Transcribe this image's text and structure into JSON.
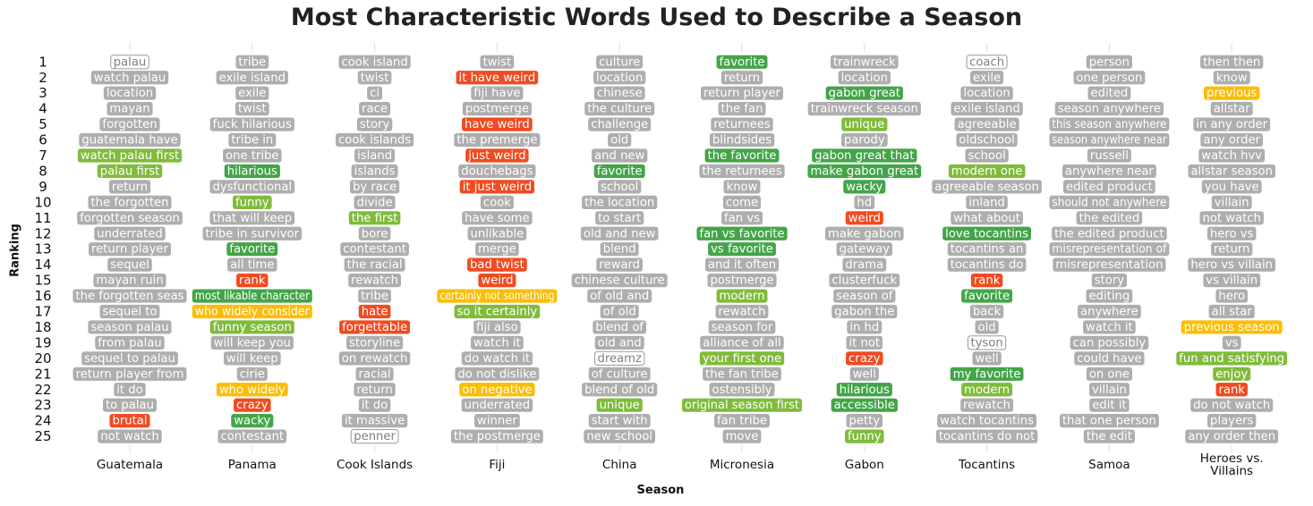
{
  "chart_data": {
    "type": "table",
    "title": "Most Characteristic Words Used to Describe a Season",
    "xlabel": "Season",
    "ylabel": "Ranking",
    "y_ticks": [
      1,
      2,
      3,
      4,
      5,
      6,
      7,
      8,
      9,
      10,
      11,
      12,
      13,
      14,
      15,
      16,
      17,
      18,
      19,
      20,
      21,
      22,
      23,
      24,
      25
    ],
    "grid": false,
    "legend": "none",
    "colors": {
      "gray": "#aeaeae",
      "red": "#f04b21",
      "green": "#43a548",
      "lightgreen": "#80bb3b",
      "yellow": "#fbbd06",
      "outline": "#ffffff",
      "outline_border": "#999999",
      "outline_text": "#808080",
      "tick": "#dddddd",
      "label_text": "#ffffff"
    },
    "series": [
      {
        "name": "Guatemala",
        "words": [
          "palau",
          "watch palau",
          "location",
          "mayan",
          "forgotten",
          "guatemala have",
          "watch palau first",
          "palau first",
          "return",
          "the forgotten",
          "forgotten season",
          "underrated",
          "return player",
          "sequel",
          "mayan ruin",
          "the forgotten seas",
          "sequel to",
          "season palau",
          "from palau",
          "sequel to palau",
          "return player from",
          "it do",
          "to palau",
          "brutal",
          "not watch"
        ],
        "colors": [
          "outline",
          "gray",
          "gray",
          "gray",
          "gray",
          "gray",
          "lightgreen",
          "lightgreen",
          "gray",
          "gray",
          "gray",
          "gray",
          "gray",
          "gray",
          "gray",
          "gray",
          "gray",
          "gray",
          "gray",
          "gray",
          "gray",
          "gray",
          "gray",
          "red",
          "gray"
        ]
      },
      {
        "name": "Panama",
        "words": [
          "tribe",
          "exile island",
          "exile",
          "twist",
          "fuck hilarious",
          "tribe in",
          "one tribe",
          "hilarious",
          "dysfunctional",
          "funny",
          "that will keep",
          "tribe in survivor",
          "favorite",
          "all time",
          "rank",
          "most likable character",
          "who widely consider",
          "funny season",
          "will keep you",
          "will keep",
          "cirie",
          "who widely",
          "crazy",
          "wacky",
          "contestant"
        ],
        "colors": [
          "gray",
          "gray",
          "gray",
          "gray",
          "gray",
          "gray",
          "gray",
          "green",
          "gray",
          "lightgreen",
          "gray",
          "gray",
          "green",
          "gray",
          "red",
          "green",
          "yellow",
          "lightgreen",
          "gray",
          "gray",
          "gray",
          "yellow",
          "red",
          "green",
          "gray"
        ]
      },
      {
        "name": "Cook Islands",
        "words": [
          "cook island",
          "twist",
          "ci",
          "race",
          "story",
          "cook islands",
          "island",
          "islands",
          "by race",
          "divide",
          "the first",
          "bore",
          "contestant",
          "the racial",
          "rewatch",
          "tribe",
          "hate",
          "forgettable",
          "storyline",
          "on rewatch",
          "racial",
          "return",
          "it do",
          "it massive",
          "penner"
        ],
        "colors": [
          "gray",
          "gray",
          "gray",
          "gray",
          "gray",
          "gray",
          "gray",
          "gray",
          "gray",
          "gray",
          "lightgreen",
          "gray",
          "gray",
          "gray",
          "gray",
          "gray",
          "red",
          "red",
          "gray",
          "gray",
          "gray",
          "gray",
          "gray",
          "gray",
          "outline"
        ]
      },
      {
        "name": "Fiji",
        "words": [
          "twist",
          "it have weird",
          "fiji have",
          "postmerge",
          "have weird",
          "the premerge",
          "just weird",
          "douchebags",
          "it just weird",
          "cook",
          "have some",
          "unlikable",
          "merge",
          "bad twist",
          "weird",
          "certainly not something",
          "so it certainly",
          "fiji also",
          "watch it",
          "do watch it",
          "do not dislike",
          "on negative",
          "underrated",
          "winner",
          "the postmerge"
        ],
        "colors": [
          "gray",
          "red",
          "gray",
          "gray",
          "red",
          "gray",
          "red",
          "gray",
          "red",
          "gray",
          "gray",
          "gray",
          "gray",
          "red",
          "red",
          "yellow",
          "lightgreen",
          "gray",
          "gray",
          "gray",
          "gray",
          "yellow",
          "gray",
          "gray",
          "gray"
        ]
      },
      {
        "name": "China",
        "words": [
          "culture",
          "location",
          "chinese",
          "the culture",
          "challenge",
          "old",
          "and new",
          "favorite",
          "school",
          "the location",
          "to start",
          "old and new",
          "blend",
          "reward",
          "chinese culture",
          "of old and",
          "of old",
          "blend of",
          "old and",
          "dreamz",
          "of culture",
          "blend of old",
          "unique",
          "start with",
          "new school"
        ],
        "colors": [
          "gray",
          "gray",
          "gray",
          "gray",
          "gray",
          "gray",
          "gray",
          "green",
          "gray",
          "gray",
          "gray",
          "gray",
          "gray",
          "gray",
          "gray",
          "gray",
          "gray",
          "gray",
          "gray",
          "outline",
          "gray",
          "gray",
          "lightgreen",
          "gray",
          "gray"
        ]
      },
      {
        "name": "Micronesia",
        "words": [
          "favorite",
          "return",
          "return player",
          "the fan",
          "returnees",
          "blindsides",
          "the favorite",
          "the returnees",
          "know",
          "come",
          "fan vs",
          "fan vs favorite",
          "vs favorite",
          "and it often",
          "postmerge",
          "modern",
          "rewatch",
          "season for",
          "alliance of all",
          "your first one",
          "the fan tribe",
          "ostensibly",
          "original season first",
          "fan tribe",
          "move"
        ],
        "colors": [
          "green",
          "gray",
          "gray",
          "gray",
          "gray",
          "gray",
          "green",
          "gray",
          "gray",
          "gray",
          "gray",
          "green",
          "green",
          "gray",
          "gray",
          "lightgreen",
          "gray",
          "gray",
          "gray",
          "lightgreen",
          "gray",
          "gray",
          "lightgreen",
          "gray",
          "gray"
        ]
      },
      {
        "name": "Gabon",
        "words": [
          "trainwreck",
          "location",
          "gabon great",
          "trainwreck season",
          "unique",
          "parody",
          "gabon great that",
          "make gabon great",
          "wacky",
          "hd",
          "weird",
          "make gabon",
          "gateway",
          "drama",
          "clusterfuck",
          "season of",
          "gabon the",
          "in hd",
          "it not",
          "crazy",
          "well",
          "hilarious",
          "accessible",
          "petty",
          "funny"
        ],
        "colors": [
          "gray",
          "gray",
          "green",
          "gray",
          "lightgreen",
          "gray",
          "green",
          "green",
          "green",
          "gray",
          "red",
          "gray",
          "gray",
          "gray",
          "gray",
          "gray",
          "gray",
          "gray",
          "gray",
          "red",
          "gray",
          "green",
          "green",
          "gray",
          "lightgreen"
        ]
      },
      {
        "name": "Tocantins",
        "words": [
          "coach",
          "exile",
          "location",
          "exile island",
          "agreeable",
          "oldschool",
          "school",
          "modern one",
          "agreeable season",
          "inland",
          "what about",
          "love tocantins",
          "tocantins an",
          "tocantins do",
          "rank",
          "favorite",
          "back",
          "old",
          "tyson",
          "well",
          "my favorite",
          "modern",
          "rewatch",
          "watch tocantins",
          "tocantins do not"
        ],
        "colors": [
          "outline",
          "gray",
          "gray",
          "gray",
          "gray",
          "gray",
          "gray",
          "lightgreen",
          "gray",
          "gray",
          "gray",
          "green",
          "gray",
          "gray",
          "red",
          "green",
          "gray",
          "gray",
          "outline",
          "gray",
          "green",
          "lightgreen",
          "gray",
          "gray",
          "gray"
        ]
      },
      {
        "name": "Samoa",
        "words": [
          "person",
          "one person",
          "edited",
          "season anywhere",
          "this season anywhere",
          "season anywhere near",
          "russell",
          "anywhere near",
          "edited product",
          "should not anywhere",
          "the edited",
          "the edited product",
          "misrepresentation of",
          "misrepresentation",
          "story",
          "editing",
          "anywhere",
          "watch it",
          "can possibly",
          "could have",
          "on one",
          "villain",
          "edit it",
          "that one person",
          "the edit"
        ],
        "colors": [
          "gray",
          "gray",
          "gray",
          "gray",
          "gray",
          "gray",
          "gray",
          "gray",
          "gray",
          "gray",
          "gray",
          "gray",
          "gray",
          "gray",
          "gray",
          "gray",
          "gray",
          "gray",
          "gray",
          "gray",
          "gray",
          "gray",
          "gray",
          "gray",
          "gray"
        ]
      },
      {
        "name": "Heroes vs. Villains",
        "words": [
          "then then",
          "know",
          "previous",
          "allstar",
          "in any order",
          "any order",
          "watch hvv",
          "allstar season",
          "you have",
          "villain",
          "not watch",
          "hero vs",
          "return",
          "hero vs villain",
          "vs villain",
          "hero",
          "all star",
          "previous season",
          "vs",
          "fun and satisfying",
          "enjoy",
          "rank",
          "do not watch",
          "players",
          "any order then"
        ],
        "colors": [
          "gray",
          "gray",
          "yellow",
          "gray",
          "gray",
          "gray",
          "gray",
          "gray",
          "gray",
          "gray",
          "gray",
          "gray",
          "gray",
          "gray",
          "gray",
          "gray",
          "gray",
          "yellow",
          "gray",
          "lightgreen",
          "lightgreen",
          "red",
          "gray",
          "gray",
          "gray"
        ]
      }
    ]
  }
}
